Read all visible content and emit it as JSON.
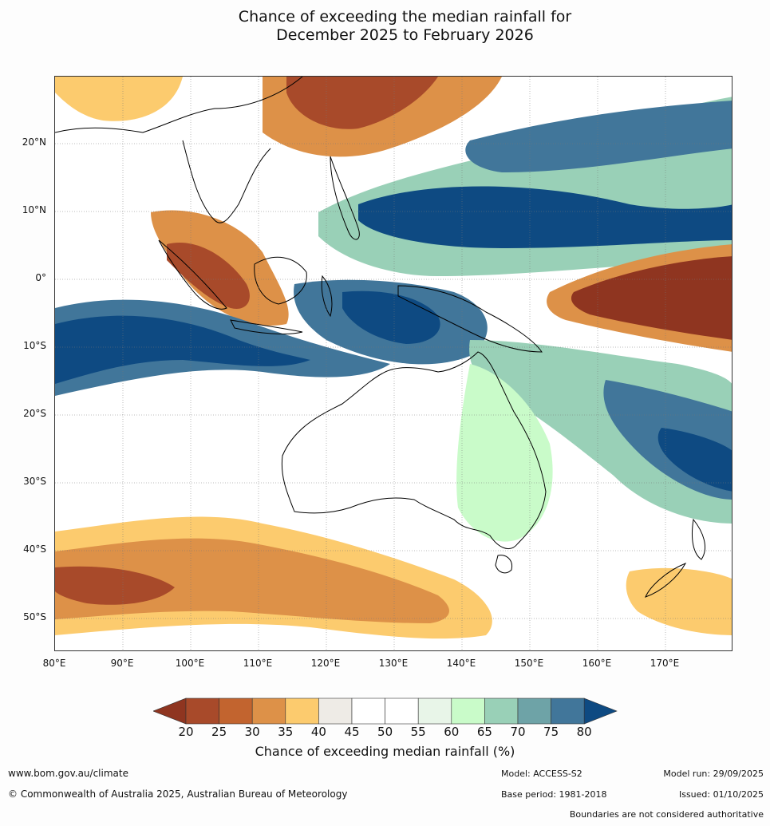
{
  "title": {
    "line1": "Chance of exceeding the median rainfall for",
    "line2": "December 2025 to February 2026"
  },
  "map": {
    "lat_labels": [
      "20°N",
      "10°N",
      "0°",
      "10°S",
      "20°S",
      "30°S",
      "40°S",
      "50°S"
    ],
    "lon_labels": [
      "80°E",
      "90°E",
      "100°E",
      "110°E",
      "120°E",
      "130°E",
      "140°E",
      "150°E",
      "160°E",
      "170°E"
    ]
  },
  "colorbar": {
    "ticks": [
      "20",
      "25",
      "30",
      "35",
      "40",
      "45",
      "50",
      "55",
      "60",
      "65",
      "70",
      "75",
      "80"
    ],
    "colors": {
      "below20": "#8f3520",
      "20_25": "#a84a2a",
      "25_30": "#c2642f",
      "30_35": "#dd9148",
      "35_40": "#fccb6e",
      "40_45": "#eeebe6",
      "45_50": "#ffffff",
      "50_55": "#ffffff",
      "55_60": "#e8f5e8",
      "60_65": "#c9fbc9",
      "65_70": "#99d0b7",
      "70_75": "#6ea3a7",
      "75_80": "#41769a",
      "above80": "#0e4a82"
    },
    "label": "Chance of exceeding median rainfall (%)"
  },
  "footer": {
    "website": "www.bom.gov.au/climate",
    "copyright": "© Commonwealth of Australia 2025, Australian Bureau of Meteorology",
    "model": "Model: ACCESS-S2",
    "base_period": "Base period: 1981-2018",
    "model_run": "Model run: 29/09/2025",
    "issued": "Issued: 01/10/2025",
    "disclaimer": "Boundaries are not considered authoritative"
  }
}
